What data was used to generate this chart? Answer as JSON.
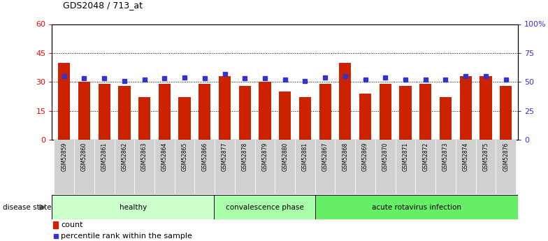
{
  "title": "GDS2048 / 713_at",
  "samples": [
    "GSM52859",
    "GSM52860",
    "GSM52861",
    "GSM52862",
    "GSM52863",
    "GSM52864",
    "GSM52865",
    "GSM52866",
    "GSM52877",
    "GSM52878",
    "GSM52879",
    "GSM52880",
    "GSM52881",
    "GSM52867",
    "GSM52868",
    "GSM52869",
    "GSM52870",
    "GSM52871",
    "GSM52872",
    "GSM52873",
    "GSM52874",
    "GSM52875",
    "GSM52876"
  ],
  "counts": [
    40,
    30,
    29,
    28,
    22,
    29,
    22,
    29,
    33,
    28,
    30,
    25,
    22,
    29,
    40,
    24,
    29,
    28,
    29,
    22,
    33,
    33,
    28
  ],
  "percentiles": [
    55,
    53,
    53,
    51,
    52,
    53,
    54,
    53,
    57,
    53,
    53,
    52,
    51,
    54,
    55,
    52,
    54,
    52,
    52,
    52,
    55,
    55,
    52
  ],
  "group_boundaries": [
    0,
    8,
    13,
    23
  ],
  "group_labels": [
    "healthy",
    "convalescence phase",
    "acute rotavirus infection"
  ],
  "group_colors": [
    "#ccffcc",
    "#aaffaa",
    "#66ee66"
  ],
  "ylim_left": [
    0,
    60
  ],
  "ylim_right": [
    0,
    100
  ],
  "yticks_left": [
    0,
    15,
    30,
    45,
    60
  ],
  "yticks_right": [
    0,
    25,
    50,
    75,
    100
  ],
  "ytick_labels_left": [
    "0",
    "15",
    "30",
    "45",
    "60"
  ],
  "ytick_labels_right": [
    "0",
    "25",
    "50",
    "75",
    "100%"
  ],
  "bar_color": "#cc2200",
  "percentile_color": "#3333cc",
  "background_color": "#ffffff",
  "legend_count_label": "count",
  "legend_percentile_label": "percentile rank within the sample",
  "disease_state_label": "disease state"
}
